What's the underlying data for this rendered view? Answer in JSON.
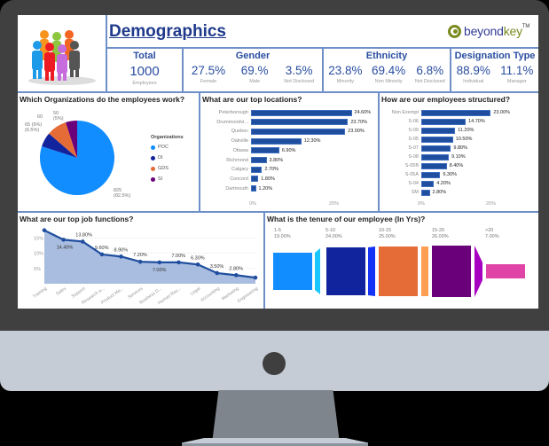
{
  "header": {
    "title": "Demographics",
    "logo": {
      "part1": "beyond",
      "part2": "key",
      "tm": "TM"
    },
    "people_icon": "people-group-icon"
  },
  "kpis": {
    "total": {
      "title": "Total",
      "value": "1000",
      "label": "Employees"
    },
    "gender": {
      "title": "Gender",
      "items": [
        {
          "value": "27.5%",
          "label": "Female"
        },
        {
          "value": "69.%",
          "label": "Male"
        },
        {
          "value": "3.5%",
          "label": "Not Disclosed"
        }
      ]
    },
    "ethnicity": {
      "title": "Ethnicity",
      "items": [
        {
          "value": "23.8%",
          "label": "Minority"
        },
        {
          "value": "69.4%",
          "label": "Non Minority"
        },
        {
          "value": "6.8%",
          "label": "Not Disclosed"
        }
      ]
    },
    "designation": {
      "title": "Designation Type",
      "items": [
        {
          "value": "88.9%",
          "label": "Individual"
        },
        {
          "value": "11.1%",
          "label": "Manager"
        }
      ]
    }
  },
  "colors": {
    "accent": "#1f4e9e",
    "border": "#6e8fc7",
    "title": "#1f3a8c",
    "kpi": "#2a4ea0"
  },
  "chart_data": [
    {
      "type": "pie",
      "title": "Which Organizations do the employees work?",
      "legend_title": "Organizations",
      "categories": [
        "POC",
        "DI",
        "GDS",
        "SI"
      ],
      "values": [
        825,
        65,
        60,
        50
      ],
      "percent_labels": [
        "(82.5%)",
        "(6.5%)",
        "(6%)",
        "(5%)"
      ],
      "colors": [
        "#118dff",
        "#12239e",
        "#e66c37",
        "#6b007b"
      ],
      "legend_position": "right"
    },
    {
      "type": "bar",
      "orientation": "horizontal",
      "title": "What are our top locations?",
      "categories": [
        "Peterborough",
        "Drummondvi...",
        "Quebec",
        "Oakville",
        "Ottawa",
        "Richmond",
        "Calgary",
        "Concord",
        "Dartmouth"
      ],
      "values": [
        24.6,
        23.7,
        23.0,
        12.3,
        6.9,
        3.8,
        2.7,
        1.8,
        1.2
      ],
      "value_labels": [
        "24.60%",
        "23.70%",
        "23.00%",
        "12.30%",
        "6.90%",
        "3.80%",
        "2.70%",
        "1.80%",
        "1.20%"
      ],
      "xticks": [
        "0%",
        "20%"
      ],
      "xlim": [
        0,
        26
      ]
    },
    {
      "type": "bar",
      "orientation": "horizontal",
      "title": "How are our employees structured?",
      "categories": [
        "Non Exempt",
        "S-06",
        "S-09",
        "S-05",
        "S-07",
        "S-08",
        "S-05B",
        "S-05A",
        "S-04",
        "SM"
      ],
      "values": [
        23.0,
        14.7,
        11.2,
        10.5,
        9.8,
        9.1,
        8.4,
        6.3,
        4.2,
        2.8
      ],
      "value_labels": [
        "23.00%",
        "14.70%",
        "11.20%",
        "10.50%",
        "9.80%",
        "9.10%",
        "8.40%",
        "6.30%",
        "4.20%",
        "2.80%"
      ],
      "xticks": [
        "0%",
        "20%"
      ],
      "xlim": [
        0,
        27
      ]
    },
    {
      "type": "area",
      "title": "What are our top job functions?",
      "categories": [
        "Training",
        "Sales",
        "Support",
        "Research a...",
        "Product Ma...",
        "Services",
        "Business D...",
        "Human Res...",
        "Legal",
        "Accounting",
        "Marketing",
        "Engineering"
      ],
      "values": [
        17.5,
        14.4,
        13.8,
        9.6,
        8.9,
        7.2,
        7.0,
        7.0,
        6.3,
        3.5,
        2.8,
        2.0
      ],
      "value_labels": [
        "",
        "14.40%",
        "13.80%",
        "9.60%",
        "8.90%",
        "7.20%",
        "7.00%",
        "7.00%",
        "6.30%",
        "3.50%",
        "2.80%",
        ""
      ],
      "yticks": [
        "5%",
        "10%",
        "15%"
      ],
      "ylim": [
        0,
        18
      ],
      "grid": true
    },
    {
      "type": "funnel",
      "title": "What is the tenure of our employee (In Yrs)?",
      "categories": [
        "1-5",
        "5-10",
        "10-15",
        "15-20",
        ">20"
      ],
      "values": [
        19.0,
        24.0,
        25.0,
        26.0,
        7.0
      ],
      "value_labels": [
        "19.00%",
        "24.00%",
        "25.00%",
        "26.00%",
        "7.00%"
      ],
      "colors": [
        "#118dff",
        "#12239e",
        "#e66c37",
        "#6b007b",
        "#e044a7"
      ],
      "connector_colors": [
        "#1ac6ff",
        "#1432f5",
        "#fe9e52",
        "#a600c0"
      ]
    }
  ]
}
